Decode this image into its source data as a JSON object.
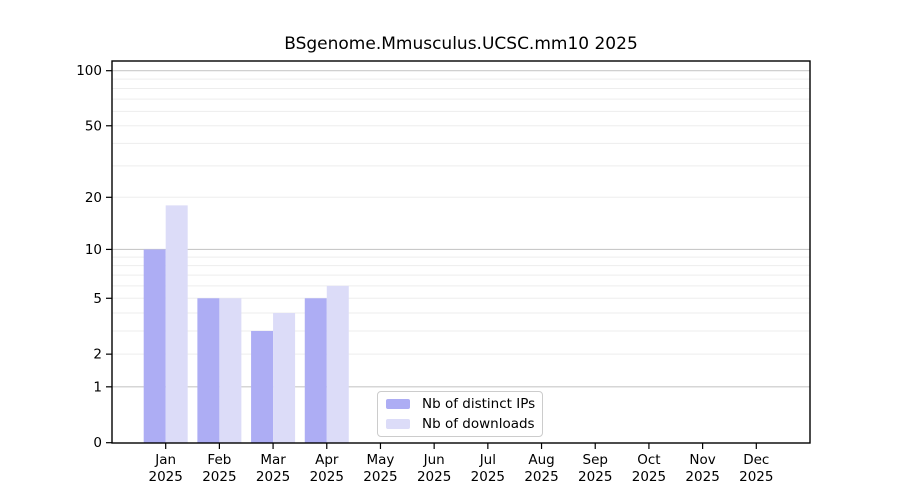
{
  "chart_data": {
    "type": "bar",
    "title": "BSgenome.Mmusculus.UCSC.mm10 2025",
    "categories": [
      "Jan",
      "Feb",
      "Mar",
      "Apr",
      "May",
      "Jun",
      "Jul",
      "Aug",
      "Sep",
      "Oct",
      "Nov",
      "Dec"
    ],
    "year_label": "2025",
    "series": [
      {
        "name": "Nb of distinct IPs",
        "color": "#adadf4",
        "values": [
          10,
          5,
          3,
          5,
          0,
          0,
          0,
          0,
          0,
          0,
          0,
          0
        ]
      },
      {
        "name": "Nb of downloads",
        "color": "#dcdcf8",
        "values": [
          18,
          5,
          4,
          6,
          0,
          0,
          0,
          0,
          0,
          0,
          0,
          0
        ]
      }
    ],
    "xlabel": "",
    "ylabel": "",
    "yscale": "log1p",
    "ylim": [
      0,
      100
    ],
    "yticks": [
      0,
      1,
      2,
      5,
      10,
      20,
      50,
      100
    ],
    "grid": {
      "major_at": [
        1,
        10,
        100
      ],
      "minor_at": [
        2,
        3,
        4,
        5,
        6,
        7,
        8,
        9,
        20,
        30,
        40,
        50,
        60,
        70,
        80,
        90
      ],
      "major_color": "#c9c9c9",
      "minor_color": "#ededed"
    },
    "legend_position": "inside-bottom-center"
  }
}
